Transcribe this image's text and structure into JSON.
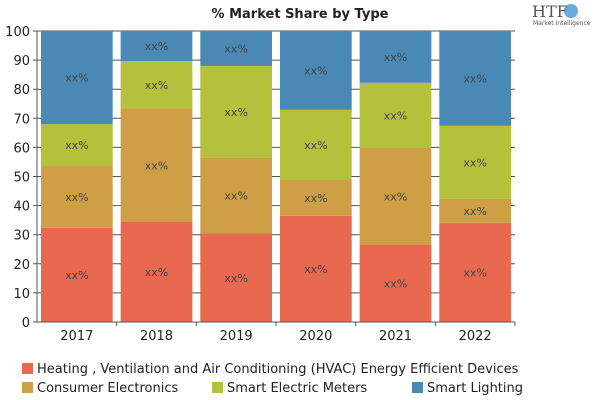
{
  "chart_data": {
    "type": "bar",
    "stacked": true,
    "title": "% Market Share by Type",
    "xlabel": "",
    "ylabel": "",
    "ylim": [
      0,
      100
    ],
    "yticks": [
      0,
      10,
      20,
      30,
      40,
      50,
      60,
      70,
      80,
      90,
      100
    ],
    "grid": true,
    "legend_position": "bottom",
    "categories": [
      "2017",
      "2018",
      "2019",
      "2020",
      "2021",
      "2022"
    ],
    "series": [
      {
        "name": "Heating , Ventilation and Air Conditioning (HVAC) Energy Efficient Devices",
        "color": "#E8694F",
        "values": [
          32.4,
          34.5,
          30.4,
          36.5,
          26.6,
          34.1
        ]
      },
      {
        "name": "Consumer Electronics",
        "color": "#CF9F45",
        "values": [
          21.2,
          38.7,
          26.1,
          12.3,
          33.2,
          8.2
        ]
      },
      {
        "name": "Smart Electric Meters",
        "color": "#B5C13C",
        "values": [
          14.4,
          16.5,
          31.5,
          24.1,
          22.4,
          25.1
        ]
      },
      {
        "name": "Smart Lighting",
        "color": "#4A89B5",
        "values": [
          32.0,
          10.3,
          12.0,
          27.1,
          17.8,
          32.6
        ]
      }
    ],
    "data_label_text": "xx%"
  },
  "logo": {
    "main": "HTF",
    "sub": "Market Intelligence"
  }
}
